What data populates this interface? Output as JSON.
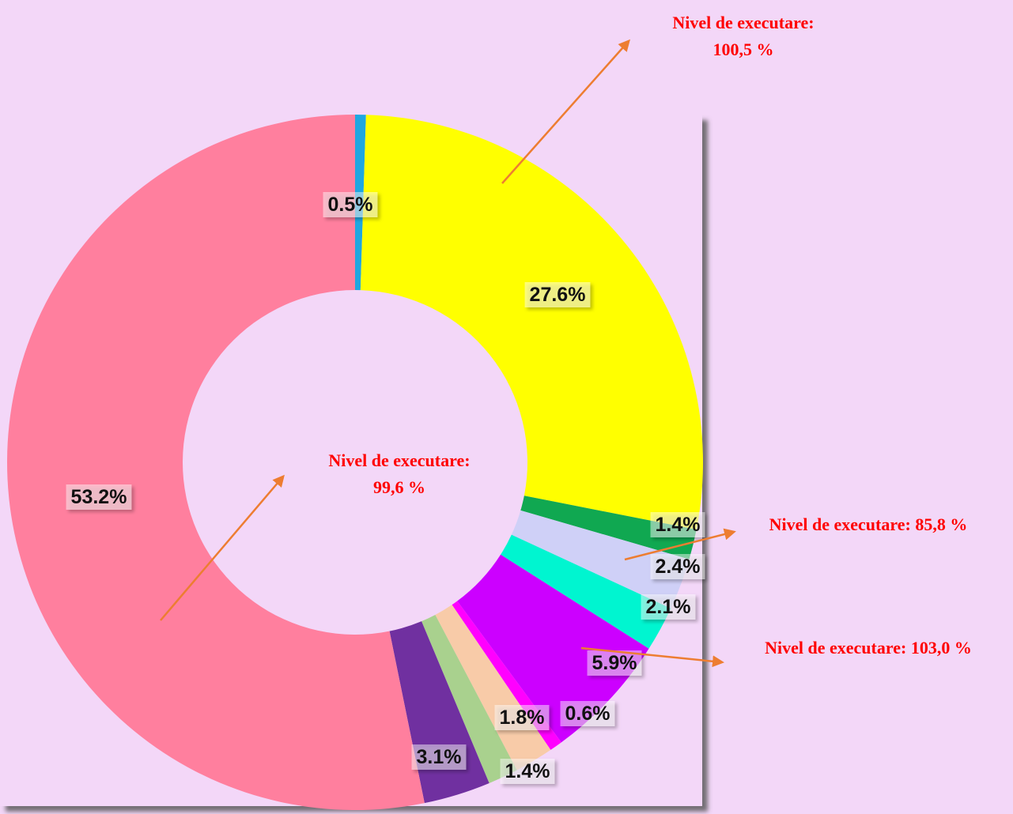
{
  "chart_data": {
    "type": "donut",
    "values": [
      0.5,
      27.6,
      1.4,
      2.4,
      2.1,
      5.9,
      0.6,
      1.8,
      1.4,
      3.1,
      53.2
    ],
    "value_labels": [
      "0.5%",
      "27.6%",
      "1.4%",
      "2.4%",
      "2.1%",
      "5.9%",
      "0.6%",
      "1.8%",
      "1.4%",
      "3.1%",
      "53.2%"
    ],
    "colors": [
      "#1fa7e0",
      "#ffff00",
      "#10a851",
      "#cfd0f7",
      "#00f5d0",
      "#cc00ff",
      "#ff00ff",
      "#f8cba8",
      "#a9d18e",
      "#7030a0",
      "#ff7f9e"
    ],
    "annotations": [
      {
        "text": [
          "Nivel de executare:",
          "100,5 %"
        ]
      },
      {
        "text": [
          "Nivel de executare:",
          "99,6 %"
        ]
      },
      {
        "text": [
          "Nivel de executare: 85,8 %"
        ]
      },
      {
        "text": [
          "Nivel de executare: 103,0 %"
        ]
      }
    ]
  }
}
